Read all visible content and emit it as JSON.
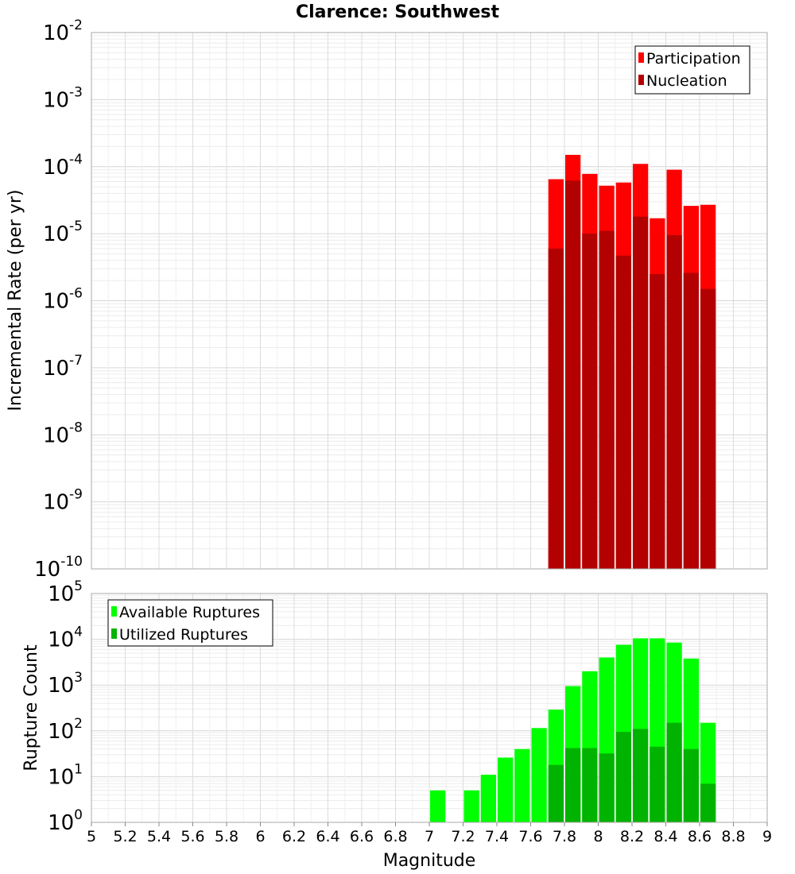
{
  "chart_data": {
    "title": "Clarence: Southwest",
    "xlabel": "Magnitude",
    "xlim": [
      5,
      9
    ],
    "xticks": [
      "5",
      "5.2",
      "5.4",
      "5.6",
      "5.8",
      "6",
      "6.2",
      "6.4",
      "6.6",
      "6.8",
      "7",
      "7.2",
      "7.4",
      "7.6",
      "7.8",
      "8",
      "8.2",
      "8.4",
      "8.6",
      "8.8",
      "9"
    ],
    "bin_width": 0.1,
    "panels": [
      {
        "type": "bar",
        "ylabel": "Incremental Rate (per yr)",
        "yscale": "log",
        "ylim_exp": [
          -10,
          -2
        ],
        "grid": true,
        "legend_position": "top-right",
        "series": [
          {
            "name": "Participation",
            "color": "#ff0000",
            "x": [
              7.75,
              7.85,
              7.95,
              8.05,
              8.15,
              8.25,
              8.35,
              8.45,
              8.55,
              8.65
            ],
            "values": [
              6.5e-05,
              0.00015,
              7.8e-05,
              5.2e-05,
              5.8e-05,
              0.00011,
              1.7e-05,
              9e-05,
              2.6e-05,
              2.7e-05
            ]
          },
          {
            "name": "Nucleation",
            "color": "#b30000",
            "x": [
              7.75,
              7.85,
              7.95,
              8.05,
              8.15,
              8.25,
              8.35,
              8.45,
              8.55,
              8.65
            ],
            "values": [
              6e-06,
              6.2e-05,
              1e-05,
              1.1e-05,
              4.7e-06,
              1.8e-05,
              2.5e-06,
              9.5e-06,
              2.6e-06,
              1.5e-06
            ]
          }
        ]
      },
      {
        "type": "bar",
        "ylabel": "Rupture Count",
        "yscale": "log",
        "ylim_exp": [
          0,
          5
        ],
        "grid": true,
        "legend_position": "top-left",
        "series": [
          {
            "name": "Available Ruptures",
            "color": "#00ff00",
            "x": [
              7.05,
              7.25,
              7.35,
              7.45,
              7.55,
              7.65,
              7.75,
              7.85,
              7.95,
              8.05,
              8.15,
              8.25,
              8.35,
              8.45,
              8.55,
              8.65
            ],
            "values": [
              5,
              5,
              11,
              26,
              40,
              115,
              290,
              950,
              2000,
              4000,
              7600,
              10500,
              10500,
              8500,
              3800,
              150
            ]
          },
          {
            "name": "Utilized Ruptures",
            "color": "#00b300",
            "x": [
              7.45,
              7.55,
              7.65,
              7.75,
              7.85,
              7.95,
              8.05,
              8.15,
              8.25,
              8.35,
              8.45,
              8.55,
              8.65
            ],
            "values": [
              1,
              1,
              1,
              18,
              42,
              42,
              32,
              95,
              110,
              45,
              150,
              40,
              7
            ]
          }
        ]
      }
    ]
  }
}
